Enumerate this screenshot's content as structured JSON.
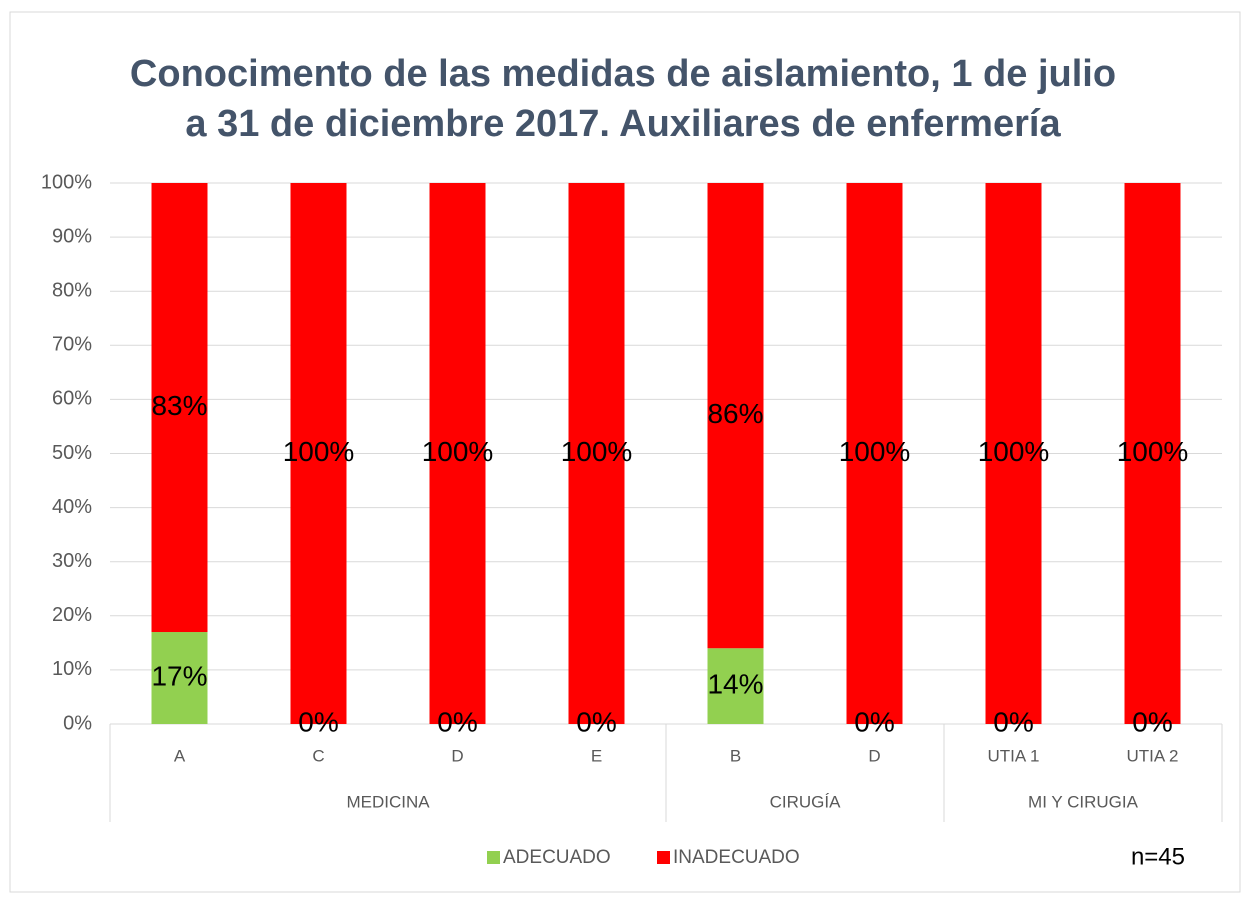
{
  "chart_data": {
    "type": "bar",
    "stacked": true,
    "title": [
      "Conocimento de las medidas de aislamiento, 1 de julio",
      "a 31 de diciembre 2017. Auxiliares de enfermería"
    ],
    "groups": [
      {
        "name": "MEDICINA",
        "categories": [
          "A",
          "C",
          "D",
          "E"
        ]
      },
      {
        "name": "CIRUGÍA",
        "categories": [
          "B",
          "D"
        ]
      },
      {
        "name": "MI Y CIRUGIA",
        "categories": [
          "UTIA 1",
          "UTIA 2"
        ]
      }
    ],
    "series": [
      {
        "name": "ADECUADO",
        "color": "#92d050",
        "values": [
          17,
          0,
          0,
          0,
          14,
          0,
          0,
          0
        ],
        "value_labels": [
          "17%",
          "0%",
          "0%",
          "0%",
          "14%",
          "0%",
          "0%",
          "0%"
        ]
      },
      {
        "name": "INADECUADO",
        "color": "#ff0000",
        "values": [
          83,
          100,
          100,
          100,
          86,
          100,
          100,
          100
        ],
        "value_labels": [
          "83%",
          "100%",
          "100%",
          "100%",
          "86%",
          "100%",
          "100%",
          "100%"
        ]
      }
    ],
    "ylim": [
      0,
      100
    ],
    "yticks": [
      {
        "value": 0,
        "label": "0%"
      },
      {
        "value": 10,
        "label": "10%"
      },
      {
        "value": 20,
        "label": "20%"
      },
      {
        "value": 30,
        "label": "30%"
      },
      {
        "value": 40,
        "label": "40%"
      },
      {
        "value": 50,
        "label": "50%"
      },
      {
        "value": 60,
        "label": "60%"
      },
      {
        "value": 70,
        "label": "70%"
      },
      {
        "value": 80,
        "label": "80%"
      },
      {
        "value": 90,
        "label": "90%"
      },
      {
        "value": 100,
        "label": "100%"
      }
    ],
    "grid": true,
    "legend": "bottom",
    "annotation": "n=45"
  }
}
